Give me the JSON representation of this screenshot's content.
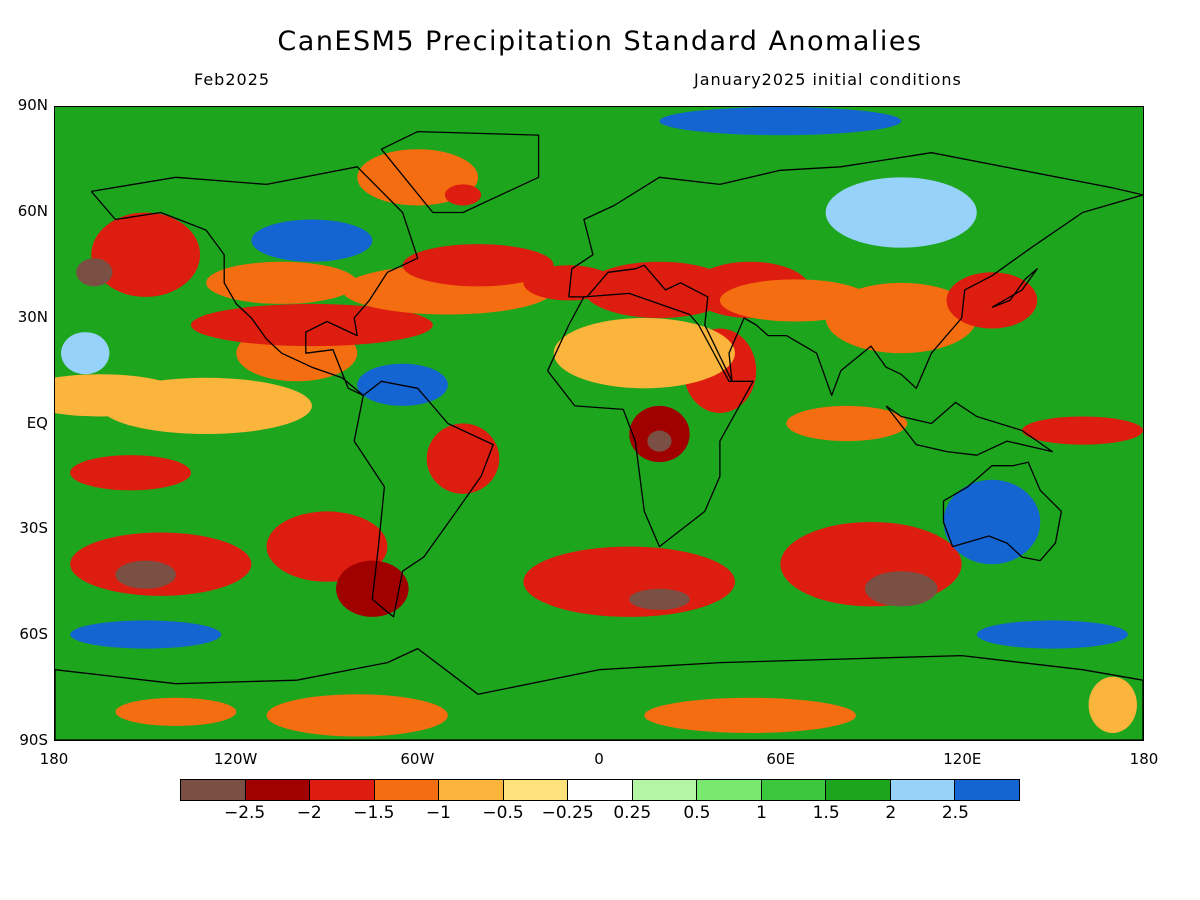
{
  "title": "CanESM5 Precipitation Standard Anomalies",
  "subtitle_left": "Feb2025",
  "subtitle_right": "January2025 initial conditions",
  "lat_labels": [
    "90N",
    "60N",
    "30N",
    "EQ",
    "30S",
    "60S",
    "90S"
  ],
  "lon_labels": [
    "180",
    "120W",
    "60W",
    "0",
    "60E",
    "120E",
    "180"
  ],
  "colorbar": {
    "colors": [
      "#7a5045",
      "#a00000",
      "#dd1d0f",
      "#f46d10",
      "#fbb43c",
      "#fde17a",
      "#ffffff",
      "#b4f5a5",
      "#78e86e",
      "#3cc83c",
      "#1ea51e",
      "#96d2fa",
      "#1464d2"
    ],
    "labels": [
      "−2.5",
      "−2",
      "−1.5",
      "−1",
      "−0.5",
      "−0.25",
      "0.25",
      "0.5",
      "1",
      "1.5",
      "2",
      "2.5"
    ]
  },
  "map": {
    "lon_range": [
      -180,
      180
    ],
    "lat_range": [
      -90,
      90
    ],
    "background_color": "#1ea51e",
    "anomaly_regions": [
      {
        "lon": -165,
        "lat": 8,
        "rx": 28,
        "ry": 6,
        "level": 4
      },
      {
        "lon": -130,
        "lat": 5,
        "rx": 35,
        "ry": 8,
        "level": 4
      },
      {
        "lon": -155,
        "lat": -14,
        "rx": 20,
        "ry": 5,
        "level": 2
      },
      {
        "lon": -100,
        "lat": 20,
        "rx": 20,
        "ry": 8,
        "level": 3
      },
      {
        "lon": -150,
        "lat": 48,
        "rx": 18,
        "ry": 12,
        "level": 2
      },
      {
        "lon": -167,
        "lat": 43,
        "rx": 6,
        "ry": 4,
        "level": 0
      },
      {
        "lon": -105,
        "lat": 40,
        "rx": 25,
        "ry": 6,
        "level": 3
      },
      {
        "lon": -95,
        "lat": 28,
        "rx": 40,
        "ry": 6,
        "level": 2
      },
      {
        "lon": -50,
        "lat": 38,
        "rx": 35,
        "ry": 7,
        "level": 3
      },
      {
        "lon": -40,
        "lat": 45,
        "rx": 25,
        "ry": 6,
        "level": 2
      },
      {
        "lon": -60,
        "lat": 70,
        "rx": 20,
        "ry": 8,
        "level": 3
      },
      {
        "lon": -45,
        "lat": 65,
        "rx": 6,
        "ry": 3,
        "level": 2
      },
      {
        "lon": -10,
        "lat": 40,
        "rx": 15,
        "ry": 5,
        "level": 2
      },
      {
        "lon": 20,
        "lat": 38,
        "rx": 25,
        "ry": 8,
        "level": 2
      },
      {
        "lon": 50,
        "lat": 38,
        "rx": 20,
        "ry": 8,
        "level": 2
      },
      {
        "lon": 65,
        "lat": 35,
        "rx": 25,
        "ry": 6,
        "level": 3
      },
      {
        "lon": 40,
        "lat": 15,
        "rx": 12,
        "ry": 12,
        "level": 2
      },
      {
        "lon": 100,
        "lat": 30,
        "rx": 25,
        "ry": 10,
        "level": 3
      },
      {
        "lon": 130,
        "lat": 35,
        "rx": 15,
        "ry": 8,
        "level": 2
      },
      {
        "lon": 15,
        "lat": 20,
        "rx": 30,
        "ry": 10,
        "level": 4
      },
      {
        "lon": 20,
        "lat": -3,
        "rx": 10,
        "ry": 8,
        "level": 1
      },
      {
        "lon": 20,
        "lat": -5,
        "rx": 4,
        "ry": 3,
        "level": 0
      },
      {
        "lon": 82,
        "lat": 0,
        "rx": 20,
        "ry": 5,
        "level": 3
      },
      {
        "lon": 160,
        "lat": -2,
        "rx": 20,
        "ry": 4,
        "level": 2
      },
      {
        "lon": -45,
        "lat": -10,
        "rx": 12,
        "ry": 10,
        "level": 2
      },
      {
        "lon": -145,
        "lat": -40,
        "rx": 30,
        "ry": 9,
        "level": 2
      },
      {
        "lon": -150,
        "lat": -43,
        "rx": 10,
        "ry": 4,
        "level": 0
      },
      {
        "lon": -90,
        "lat": -35,
        "rx": 20,
        "ry": 10,
        "level": 2
      },
      {
        "lon": -75,
        "lat": -47,
        "rx": 12,
        "ry": 8,
        "level": 1
      },
      {
        "lon": 10,
        "lat": -45,
        "rx": 35,
        "ry": 10,
        "level": 2
      },
      {
        "lon": 20,
        "lat": -50,
        "rx": 10,
        "ry": 3,
        "level": 0
      },
      {
        "lon": 90,
        "lat": -40,
        "rx": 30,
        "ry": 12,
        "level": 2
      },
      {
        "lon": 100,
        "lat": -47,
        "rx": 12,
        "ry": 5,
        "level": 0
      },
      {
        "lon": -80,
        "lat": -83,
        "rx": 30,
        "ry": 6,
        "level": 3
      },
      {
        "lon": -140,
        "lat": -82,
        "rx": 20,
        "ry": 4,
        "level": 3
      },
      {
        "lon": 50,
        "lat": -83,
        "rx": 35,
        "ry": 5,
        "level": 3
      },
      {
        "lon": 170,
        "lat": -80,
        "rx": 8,
        "ry": 8,
        "level": 4
      },
      {
        "lon": -95,
        "lat": 52,
        "rx": 20,
        "ry": 6,
        "level": 12
      },
      {
        "lon": -65,
        "lat": 11,
        "rx": 15,
        "ry": 6,
        "level": 12
      },
      {
        "lon": 130,
        "lat": -28,
        "rx": 16,
        "ry": 12,
        "level": 12
      },
      {
        "lon": 100,
        "lat": 60,
        "rx": 25,
        "ry": 10,
        "level": 11
      },
      {
        "lon": 60,
        "lat": 86,
        "rx": 40,
        "ry": 4,
        "level": 12
      },
      {
        "lon": -150,
        "lat": -60,
        "rx": 25,
        "ry": 4,
        "level": 12
      },
      {
        "lon": 150,
        "lat": -60,
        "rx": 25,
        "ry": 4,
        "level": 12
      },
      {
        "lon": -170,
        "lat": 20,
        "rx": 8,
        "ry": 6,
        "level": 11
      }
    ],
    "land_outlines": [
      [
        [
          -168,
          66
        ],
        [
          -140,
          70
        ],
        [
          -110,
          68
        ],
        [
          -80,
          73
        ],
        [
          -65,
          60
        ],
        [
          -60,
          47
        ],
        [
          -70,
          43
        ],
        [
          -76,
          35
        ],
        [
          -81,
          30
        ],
        [
          -80,
          25
        ],
        [
          -90,
          29
        ],
        [
          -97,
          26
        ],
        [
          -97,
          20
        ],
        [
          -88,
          21
        ],
        [
          -83,
          10
        ],
        [
          -78,
          8
        ],
        [
          -85,
          13
        ],
        [
          -95,
          16
        ],
        [
          -105,
          20
        ],
        [
          -110,
          24
        ],
        [
          -115,
          30
        ],
        [
          -120,
          34
        ],
        [
          -124,
          40
        ],
        [
          -124,
          48
        ],
        [
          -130,
          55
        ],
        [
          -145,
          60
        ],
        [
          -160,
          58
        ],
        [
          -168,
          66
        ]
      ],
      [
        [
          -78,
          8
        ],
        [
          -72,
          12
        ],
        [
          -60,
          10
        ],
        [
          -50,
          0
        ],
        [
          -35,
          -6
        ],
        [
          -39,
          -15
        ],
        [
          -48,
          -26
        ],
        [
          -58,
          -38
        ],
        [
          -65,
          -42
        ],
        [
          -68,
          -55
        ],
        [
          -75,
          -50
        ],
        [
          -73,
          -35
        ],
        [
          -71,
          -18
        ],
        [
          -81,
          -5
        ],
        [
          -78,
          8
        ]
      ],
      [
        [
          -17,
          15
        ],
        [
          -10,
          28
        ],
        [
          -5,
          36
        ],
        [
          10,
          37
        ],
        [
          30,
          31
        ],
        [
          33,
          28
        ],
        [
          43,
          12
        ],
        [
          51,
          12
        ],
        [
          40,
          -5
        ],
        [
          40,
          -15
        ],
        [
          35,
          -25
        ],
        [
          20,
          -35
        ],
        [
          15,
          -25
        ],
        [
          12,
          -5
        ],
        [
          8,
          4
        ],
        [
          -8,
          5
        ],
        [
          -17,
          15
        ]
      ],
      [
        [
          -10,
          36
        ],
        [
          -9,
          44
        ],
        [
          -2,
          48
        ],
        [
          -5,
          58
        ],
        [
          5,
          62
        ],
        [
          20,
          70
        ],
        [
          40,
          68
        ],
        [
          60,
          72
        ],
        [
          80,
          73
        ],
        [
          110,
          77
        ],
        [
          140,
          72
        ],
        [
          170,
          67
        ],
        [
          180,
          65
        ],
        [
          160,
          60
        ],
        [
          143,
          50
        ],
        [
          130,
          42
        ],
        [
          121,
          38
        ],
        [
          120,
          30
        ],
        [
          110,
          20
        ],
        [
          105,
          10
        ],
        [
          100,
          14
        ],
        [
          95,
          16
        ],
        [
          90,
          22
        ],
        [
          80,
          15
        ],
        [
          77,
          8
        ],
        [
          72,
          20
        ],
        [
          62,
          25
        ],
        [
          56,
          25
        ],
        [
          52,
          28
        ],
        [
          48,
          30
        ],
        [
          43,
          20
        ],
        [
          44,
          12
        ],
        [
          35,
          28
        ],
        [
          36,
          36
        ],
        [
          27,
          40
        ],
        [
          22,
          38
        ],
        [
          15,
          45
        ],
        [
          12,
          44
        ],
        [
          3,
          43
        ],
        [
          -4,
          36
        ],
        [
          -10,
          36
        ]
      ],
      [
        [
          114,
          -22
        ],
        [
          122,
          -18
        ],
        [
          130,
          -12
        ],
        [
          137,
          -12
        ],
        [
          142,
          -11
        ],
        [
          146,
          -19
        ],
        [
          153,
          -25
        ],
        [
          151,
          -34
        ],
        [
          146,
          -39
        ],
        [
          140,
          -38
        ],
        [
          135,
          -34
        ],
        [
          129,
          -32
        ],
        [
          117,
          -35
        ],
        [
          114,
          -28
        ],
        [
          114,
          -22
        ]
      ],
      [
        [
          -55,
          60
        ],
        [
          -45,
          60
        ],
        [
          -20,
          70
        ],
        [
          -20,
          82
        ],
        [
          -60,
          83
        ],
        [
          -72,
          78
        ],
        [
          -55,
          60
        ]
      ],
      [
        [
          -180,
          -70
        ],
        [
          -140,
          -74
        ],
        [
          -100,
          -73
        ],
        [
          -70,
          -68
        ],
        [
          -60,
          -64
        ],
        [
          -40,
          -77
        ],
        [
          0,
          -70
        ],
        [
          40,
          -68
        ],
        [
          80,
          -67
        ],
        [
          120,
          -66
        ],
        [
          160,
          -70
        ],
        [
          180,
          -73
        ],
        [
          180,
          -90
        ],
        [
          -180,
          -90
        ],
        [
          -180,
          -70
        ]
      ],
      [
        [
          95,
          5
        ],
        [
          105,
          -6
        ],
        [
          115,
          -8
        ],
        [
          125,
          -9
        ],
        [
          135,
          -5
        ],
        [
          150,
          -8
        ],
        [
          140,
          -2
        ],
        [
          125,
          2
        ],
        [
          118,
          6
        ],
        [
          110,
          0
        ],
        [
          100,
          2
        ],
        [
          95,
          5
        ]
      ],
      [
        [
          130,
          33
        ],
        [
          136,
          35
        ],
        [
          141,
          41
        ],
        [
          145,
          44
        ],
        [
          140,
          38
        ],
        [
          132,
          34
        ],
        [
          130,
          33
        ]
      ]
    ]
  }
}
